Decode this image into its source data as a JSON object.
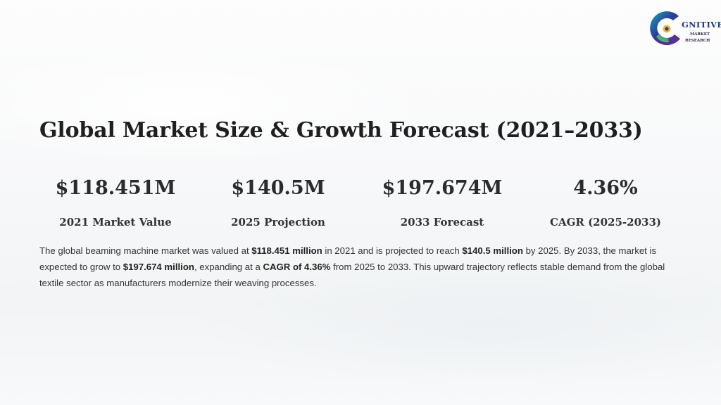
{
  "logo": {
    "word": "GNITIVE",
    "sub_line1": "MARKET",
    "sub_line2": "RESEARCH",
    "colors": {
      "ring_blue": "#2a3d9e",
      "ring_teal": "#17a2b8",
      "ring_green": "#8cc63f",
      "ring_purple": "#6b2c91",
      "word": "#1f3a8a"
    }
  },
  "title": "Global Market Size & Growth Forecast (2021–2033)",
  "stats": [
    {
      "value": "$118.451M",
      "label": "2021 Market Value"
    },
    {
      "value": "$140.5M",
      "label": "2025 Projection"
    },
    {
      "value": "$197.674M",
      "label": "2033 Forecast"
    },
    {
      "value": "4.36%",
      "label": "CAGR (2025-2033)"
    }
  ],
  "paragraph": {
    "t1": "The global beaming machine market was valued at ",
    "b1": "$118.451 million",
    "t2": " in 2021 and is projected to reach ",
    "b2": "$140.5 million",
    "t3": " by 2025. By 2033, the market is expected to grow to ",
    "b3": "$197.674 million",
    "t4": ", expanding at a ",
    "b4": "CAGR of 4.36%",
    "t5": " from 2025 to 2033. This upward trajectory reflects stable demand from the global textile sector as manufacturers modernize their weaving processes."
  }
}
